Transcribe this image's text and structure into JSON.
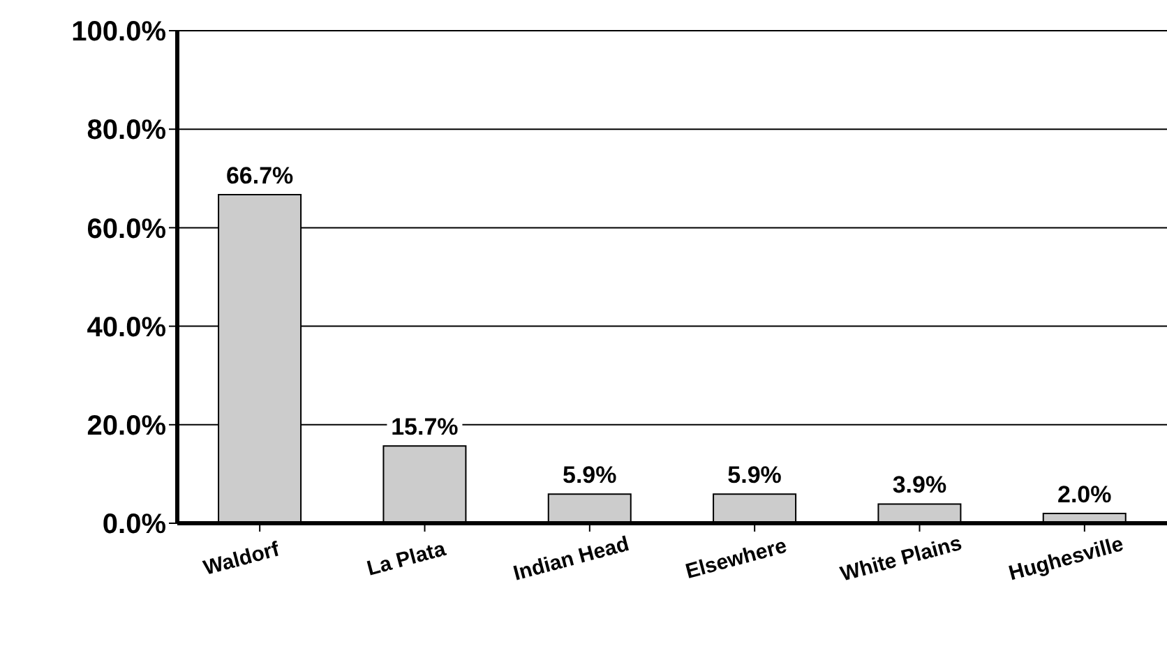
{
  "chart_data": {
    "type": "bar",
    "categories": [
      "Waldorf",
      "La Plata",
      "Indian Head",
      "Elsewhere",
      "White Plains",
      "Hughesville"
    ],
    "values": [
      66.7,
      15.7,
      5.9,
      5.9,
      3.9,
      2.0
    ],
    "value_labels": [
      "66.7%",
      "15.7%",
      "5.9%",
      "5.9%",
      "3.9%",
      "2.0%"
    ],
    "color": "#cccccc",
    "ylim": [
      0,
      100
    ],
    "yticks": [
      {
        "value": 0,
        "label": "0.0%"
      },
      {
        "value": 20,
        "label": "20.0%"
      },
      {
        "value": 40,
        "label": "40.0%"
      },
      {
        "value": 60,
        "label": "60.0%"
      },
      {
        "value": 80,
        "label": "80.0%"
      },
      {
        "value": 100,
        "label": "100.0%"
      }
    ],
    "grid": "y",
    "legend": false
  }
}
